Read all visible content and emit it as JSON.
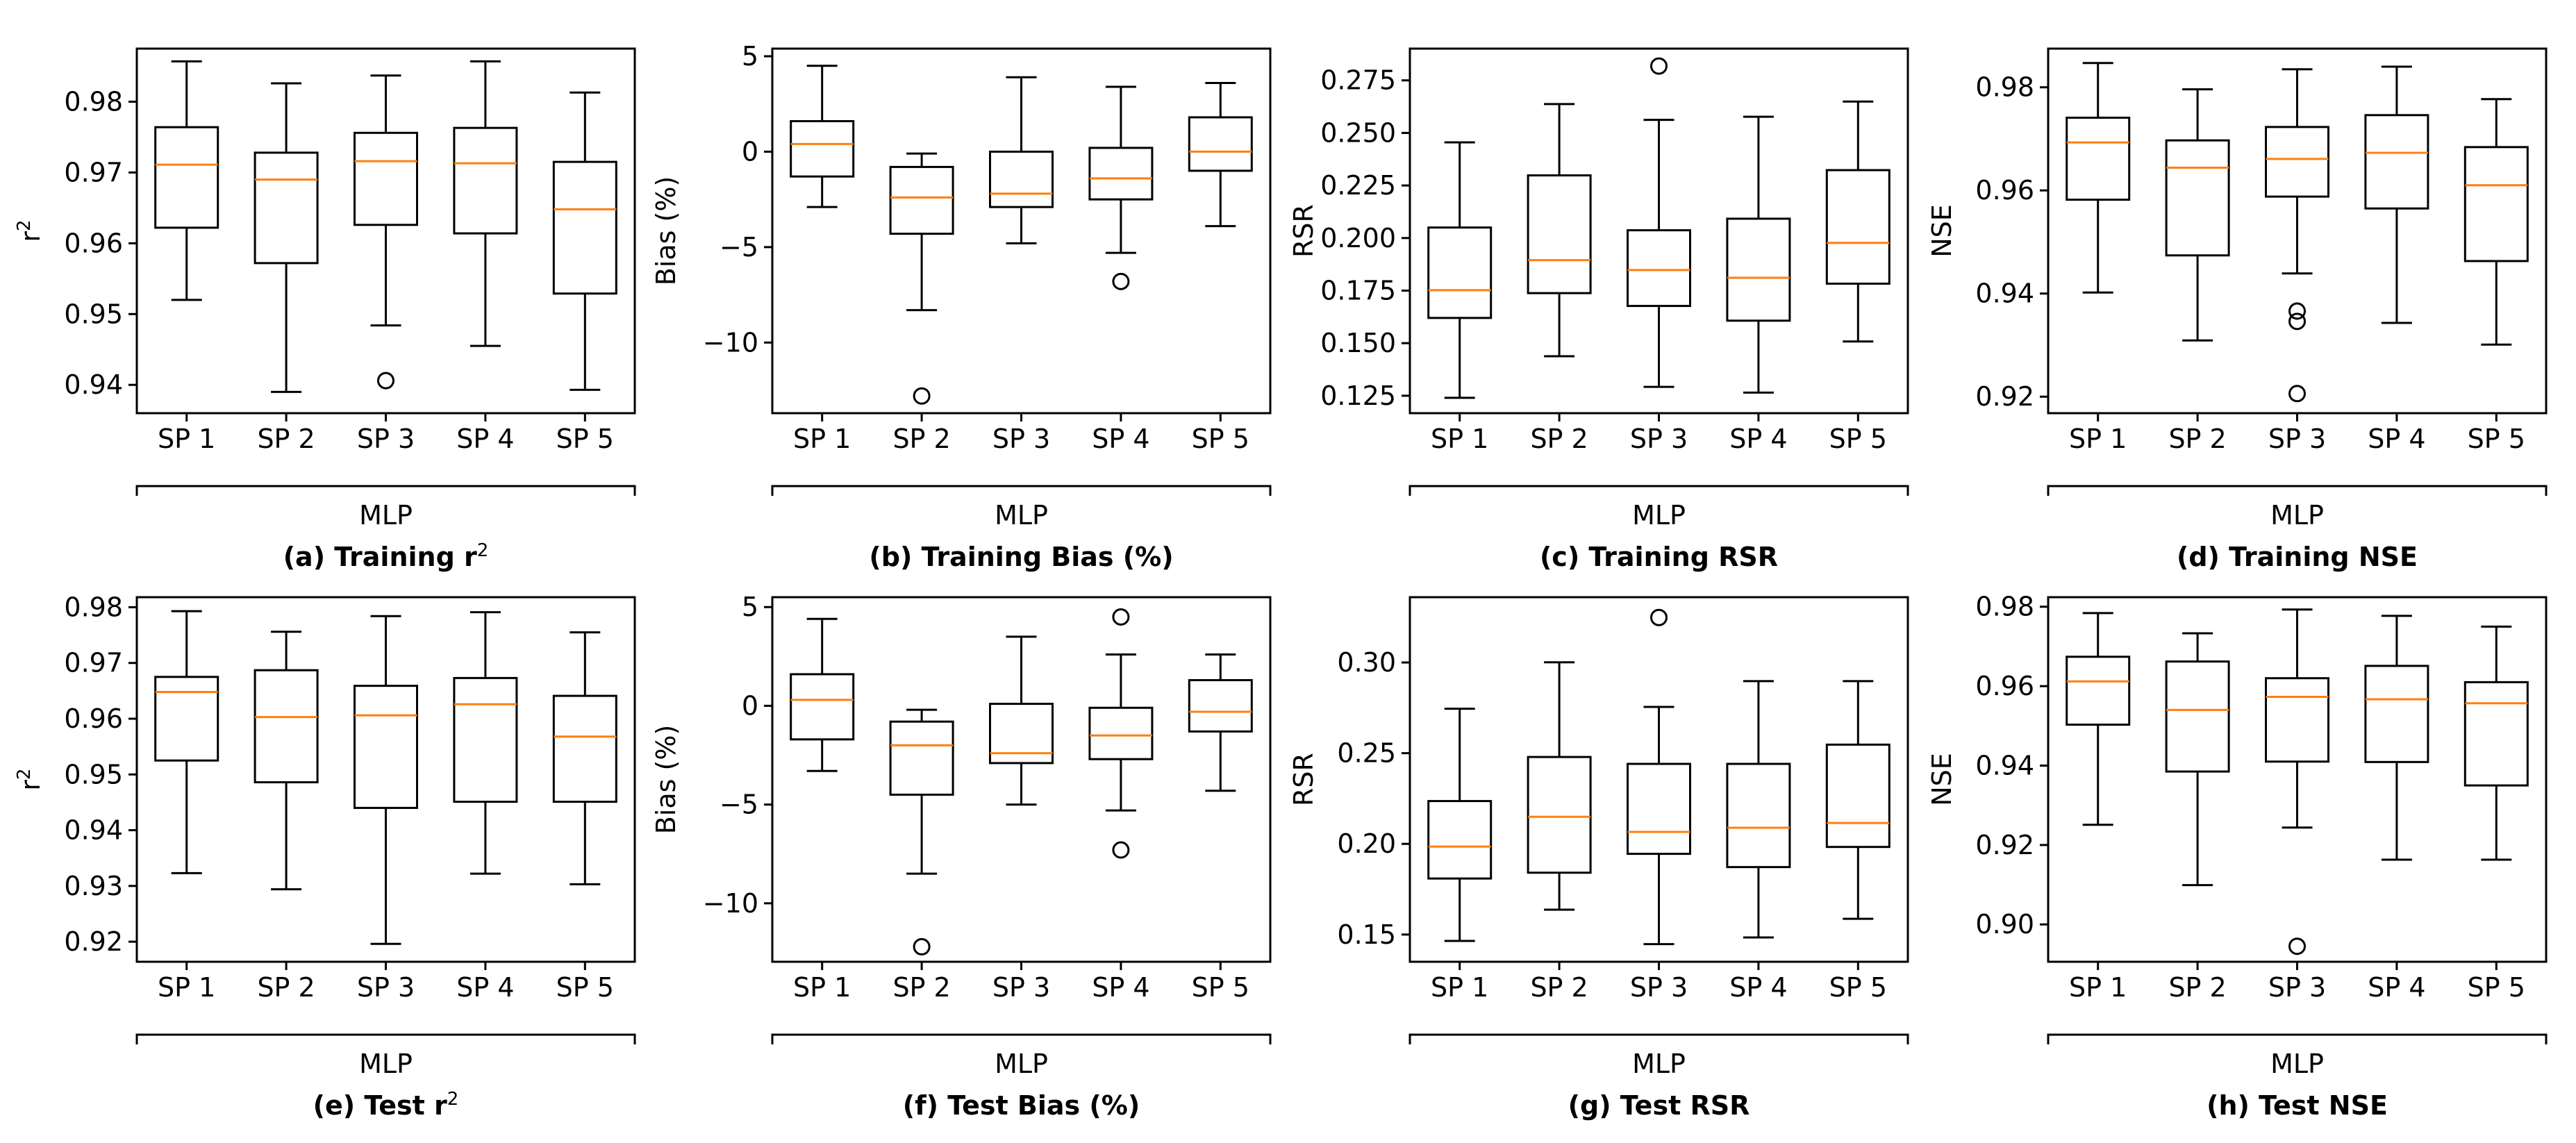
{
  "figure": {
    "group_label": "MLP"
  },
  "chart_data": [
    {
      "type": "boxplot",
      "caption_prefix": "(a) Training ",
      "caption_main": "r",
      "caption_sup": "2",
      "ylabel": "r",
      "ylabel_sup": "2",
      "ylim": [
        0.936,
        0.9875
      ],
      "yticks": [
        "0.94",
        "0.95",
        "0.96",
        "0.97",
        "0.98"
      ],
      "categories": [
        "SP 1",
        "SP 2",
        "SP 3",
        "SP 4",
        "SP 5"
      ],
      "boxes": [
        {
          "whislo": 0.952,
          "q1": 0.9622,
          "med": 0.9711,
          "q3": 0.9764,
          "whishi": 0.9857,
          "fliers": []
        },
        {
          "whislo": 0.939,
          "q1": 0.9572,
          "med": 0.969,
          "q3": 0.9728,
          "whishi": 0.9826,
          "fliers": []
        },
        {
          "whislo": 0.9484,
          "q1": 0.9626,
          "med": 0.9716,
          "q3": 0.9756,
          "whishi": 0.9837,
          "fliers": [
            0.9406
          ]
        },
        {
          "whislo": 0.9455,
          "q1": 0.9614,
          "med": 0.9713,
          "q3": 0.9763,
          "whishi": 0.9857,
          "fliers": []
        },
        {
          "whislo": 0.9393,
          "q1": 0.9529,
          "med": 0.9648,
          "q3": 0.9715,
          "whishi": 0.9813,
          "fliers": []
        }
      ]
    },
    {
      "type": "boxplot",
      "caption_prefix": "(b) Training Bias (%)",
      "caption_main": "",
      "caption_sup": "",
      "ylabel": "Bias (%)",
      "ylabel_sup": "",
      "ylim": [
        -13.7,
        5.4
      ],
      "yticks": [
        "5",
        "0",
        "−5",
        "−10"
      ],
      "ytick_values": [
        5,
        0,
        -5,
        -10
      ],
      "categories": [
        "SP 1",
        "SP 2",
        "SP 3",
        "SP 4",
        "SP 5"
      ],
      "boxes": [
        {
          "whislo": -2.9,
          "q1": -1.3,
          "med": 0.4,
          "q3": 1.6,
          "whishi": 4.5,
          "fliers": []
        },
        {
          "whislo": -8.3,
          "q1": -4.3,
          "med": -2.4,
          "q3": -0.8,
          "whishi": -0.1,
          "fliers": [
            -12.8
          ]
        },
        {
          "whislo": -4.8,
          "q1": -2.9,
          "med": -2.2,
          "q3": 0.0,
          "whishi": 3.9,
          "fliers": []
        },
        {
          "whislo": -5.3,
          "q1": -2.5,
          "med": -1.4,
          "q3": 0.2,
          "whishi": 3.4,
          "fliers": [
            -6.8
          ]
        },
        {
          "whislo": -3.9,
          "q1": -1.0,
          "med": 0.0,
          "q3": 1.8,
          "whishi": 3.6,
          "fliers": []
        }
      ]
    },
    {
      "type": "boxplot",
      "caption_prefix": "(c) Training RSR",
      "caption_main": "",
      "caption_sup": "",
      "ylabel": "RSR",
      "ylabel_sup": "",
      "ylim": [
        0.1167,
        0.2901
      ],
      "yticks": [
        "0.275",
        "0.250",
        "0.225",
        "0.200",
        "0.175",
        "0.150",
        "0.125"
      ],
      "ytick_values": [
        0.275,
        0.25,
        0.225,
        0.2,
        0.175,
        0.15,
        0.125
      ],
      "categories": [
        "SP 1",
        "SP 2",
        "SP 3",
        "SP 4",
        "SP 5"
      ],
      "boxes": [
        {
          "whislo": 0.124,
          "q1": 0.162,
          "med": 0.1752,
          "q3": 0.205,
          "whishi": 0.2455,
          "fliers": []
        },
        {
          "whislo": 0.1438,
          "q1": 0.1738,
          "med": 0.1895,
          "q3": 0.2298,
          "whishi": 0.2637,
          "fliers": []
        },
        {
          "whislo": 0.1292,
          "q1": 0.1677,
          "med": 0.1848,
          "q3": 0.2037,
          "whishi": 0.2562,
          "fliers": [
            0.2818
          ]
        },
        {
          "whislo": 0.1265,
          "q1": 0.1607,
          "med": 0.1811,
          "q3": 0.2092,
          "whishi": 0.2577,
          "fliers": []
        },
        {
          "whislo": 0.1508,
          "q1": 0.1783,
          "med": 0.1977,
          "q3": 0.2323,
          "whishi": 0.2649,
          "fliers": []
        }
      ]
    },
    {
      "type": "boxplot",
      "caption_prefix": "(d) Training NSE",
      "caption_main": "",
      "caption_sup": "",
      "ylabel": "NSE",
      "ylabel_sup": "",
      "ylim": [
        0.9168,
        0.9875
      ],
      "yticks": [
        "0.98",
        "0.96",
        "0.94",
        "0.92"
      ],
      "ytick_values": [
        0.98,
        0.96,
        0.94,
        0.92
      ],
      "categories": [
        "SP 1",
        "SP 2",
        "SP 3",
        "SP 4",
        "SP 5"
      ],
      "boxes": [
        {
          "whislo": 0.9402,
          "q1": 0.9582,
          "med": 0.9693,
          "q3": 0.9741,
          "whishi": 0.9847,
          "fliers": []
        },
        {
          "whislo": 0.9309,
          "q1": 0.9474,
          "med": 0.9644,
          "q3": 0.9697,
          "whishi": 0.9796,
          "fliers": []
        },
        {
          "whislo": 0.9439,
          "q1": 0.9588,
          "med": 0.9661,
          "q3": 0.9723,
          "whishi": 0.9835,
          "fliers": [
            0.9366,
            0.9346,
            0.9206
          ]
        },
        {
          "whislo": 0.9343,
          "q1": 0.9565,
          "med": 0.9673,
          "q3": 0.9746,
          "whishi": 0.984,
          "fliers": []
        },
        {
          "whislo": 0.9301,
          "q1": 0.9463,
          "med": 0.961,
          "q3": 0.9684,
          "whishi": 0.9777,
          "fliers": []
        }
      ]
    },
    {
      "type": "boxplot",
      "caption_prefix": "(e) Test ",
      "caption_main": "r",
      "caption_sup": "2",
      "ylabel": "r",
      "ylabel_sup": "2",
      "ylim": [
        0.9164,
        0.9818
      ],
      "yticks": [
        "0.98",
        "0.97",
        "0.96",
        "0.95",
        "0.94",
        "0.93",
        "0.92"
      ],
      "ytick_values": [
        0.98,
        0.97,
        0.96,
        0.95,
        0.94,
        0.93,
        0.92
      ],
      "categories": [
        "SP 1",
        "SP 2",
        "SP 3",
        "SP 4",
        "SP 5"
      ],
      "boxes": [
        {
          "whislo": 0.9323,
          "q1": 0.9525,
          "med": 0.9648,
          "q3": 0.9675,
          "whishi": 0.9793,
          "fliers": []
        },
        {
          "whislo": 0.9294,
          "q1": 0.9486,
          "med": 0.9603,
          "q3": 0.9687,
          "whishi": 0.9756,
          "fliers": []
        },
        {
          "whislo": 0.9196,
          "q1": 0.944,
          "med": 0.9606,
          "q3": 0.9659,
          "whishi": 0.9784,
          "fliers": []
        },
        {
          "whislo": 0.9322,
          "q1": 0.9451,
          "med": 0.9626,
          "q3": 0.9673,
          "whishi": 0.9791,
          "fliers": []
        },
        {
          "whislo": 0.9303,
          "q1": 0.9451,
          "med": 0.9568,
          "q3": 0.9641,
          "whishi": 0.9755,
          "fliers": []
        }
      ]
    },
    {
      "type": "boxplot",
      "caption_prefix": "(f) Test Bias (%)",
      "caption_main": "",
      "caption_sup": "",
      "ylabel": "Bias (%)",
      "ylabel_sup": "",
      "ylim": [
        -12.96,
        5.5
      ],
      "yticks": [
        "5",
        "0",
        "−5",
        "−10"
      ],
      "ytick_values": [
        5,
        0,
        -5,
        -10
      ],
      "categories": [
        "SP 1",
        "SP 2",
        "SP 3",
        "SP 4",
        "SP 5"
      ],
      "boxes": [
        {
          "whislo": -3.3,
          "q1": -1.7,
          "med": 0.3,
          "q3": 1.6,
          "whishi": 4.4,
          "fliers": []
        },
        {
          "whislo": -8.5,
          "q1": -4.5,
          "med": -2.0,
          "q3": -0.8,
          "whishi": -0.2,
          "fliers": [
            -12.2
          ]
        },
        {
          "whislo": -5.0,
          "q1": -2.9,
          "med": -2.4,
          "q3": 0.1,
          "whishi": 3.5,
          "fliers": []
        },
        {
          "whislo": -5.3,
          "q1": -2.7,
          "med": -1.5,
          "q3": -0.1,
          "whishi": 2.6,
          "fliers": [
            4.5,
            -7.3
          ]
        },
        {
          "whislo": -4.3,
          "q1": -1.3,
          "med": -0.3,
          "q3": 1.3,
          "whishi": 2.6,
          "fliers": []
        }
      ]
    },
    {
      "type": "boxplot",
      "caption_prefix": "(g) Test RSR",
      "caption_main": "",
      "caption_sup": "",
      "ylabel": "RSR",
      "ylabel_sup": "",
      "ylim": [
        0.135,
        0.336
      ],
      "yticks": [
        "0.30",
        "0.25",
        "0.20",
        "0.15"
      ],
      "ytick_values": [
        0.3,
        0.25,
        0.2,
        0.15
      ],
      "categories": [
        "SP 1",
        "SP 2",
        "SP 3",
        "SP 4",
        "SP 5"
      ],
      "boxes": [
        {
          "whislo": 0.1465,
          "q1": 0.1809,
          "med": 0.1985,
          "q3": 0.2236,
          "whishi": 0.2745,
          "fliers": []
        },
        {
          "whislo": 0.1637,
          "q1": 0.1841,
          "med": 0.2149,
          "q3": 0.2479,
          "whishi": 0.3001,
          "fliers": []
        },
        {
          "whislo": 0.1447,
          "q1": 0.1945,
          "med": 0.2066,
          "q3": 0.2441,
          "whishi": 0.2755,
          "fliers": [
            0.3248
          ]
        },
        {
          "whislo": 0.1484,
          "q1": 0.1872,
          "med": 0.2089,
          "q3": 0.2441,
          "whishi": 0.2897,
          "fliers": []
        },
        {
          "whislo": 0.1587,
          "q1": 0.1983,
          "med": 0.2115,
          "q3": 0.2547,
          "whishi": 0.2897,
          "fliers": []
        }
      ]
    },
    {
      "type": "boxplot",
      "caption_prefix": "(h) Test NSE",
      "caption_main": "",
      "caption_sup": "",
      "ylabel": "NSE",
      "ylabel_sup": "",
      "ylim": [
        0.8906,
        0.9824
      ],
      "yticks": [
        "0.98",
        "0.96",
        "0.94",
        "0.92",
        "0.90"
      ],
      "ytick_values": [
        0.98,
        0.96,
        0.94,
        0.92,
        0.9
      ],
      "categories": [
        "SP 1",
        "SP 2",
        "SP 3",
        "SP 4",
        "SP 5"
      ],
      "boxes": [
        {
          "whislo": 0.9251,
          "q1": 0.9503,
          "med": 0.9612,
          "q3": 0.9674,
          "whishi": 0.9784,
          "fliers": []
        },
        {
          "whislo": 0.9099,
          "q1": 0.9385,
          "med": 0.954,
          "q3": 0.9662,
          "whishi": 0.9733,
          "fliers": []
        },
        {
          "whislo": 0.9244,
          "q1": 0.941,
          "med": 0.9573,
          "q3": 0.962,
          "whishi": 0.9793,
          "fliers": [
            0.8945
          ]
        },
        {
          "whislo": 0.9163,
          "q1": 0.9409,
          "med": 0.9567,
          "q3": 0.9651,
          "whishi": 0.9777,
          "fliers": []
        },
        {
          "whislo": 0.9163,
          "q1": 0.935,
          "med": 0.9557,
          "q3": 0.961,
          "whishi": 0.975,
          "fliers": []
        }
      ]
    }
  ]
}
